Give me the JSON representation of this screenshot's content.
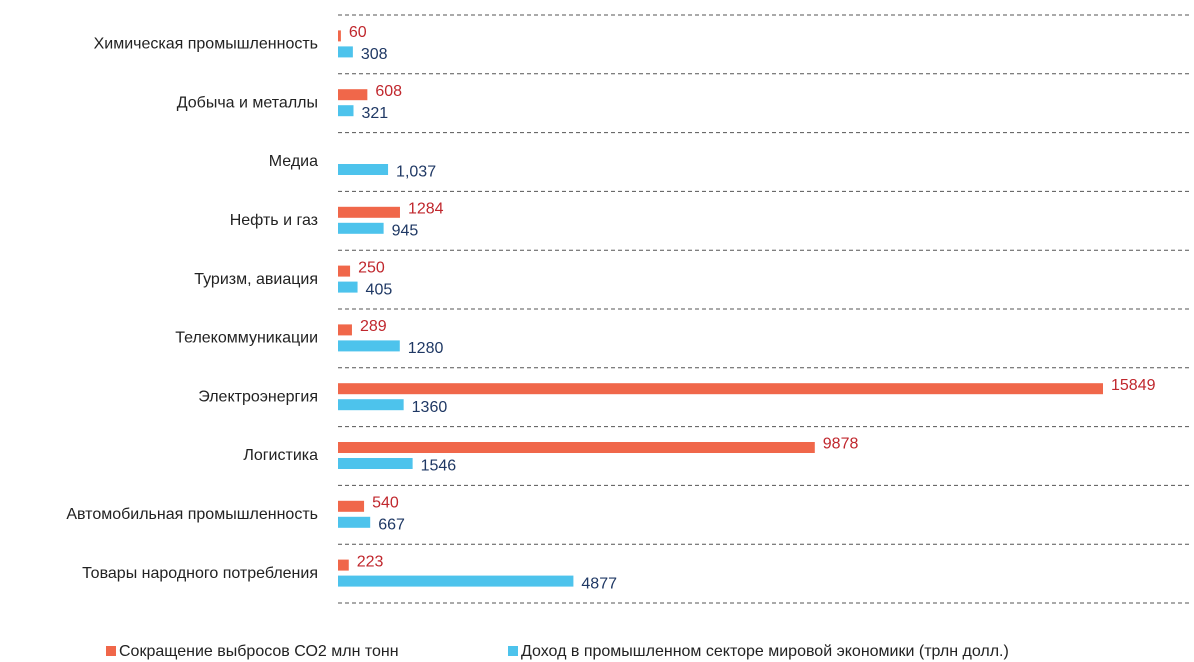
{
  "chart_data": {
    "type": "hbar",
    "categories": [
      "Химическая промышленность",
      "Добыча и металлы",
      "Медиа",
      "Нефть и газ",
      "Туризм, авиация",
      "Телекоммуникации",
      "Электроэнергия",
      "Логистика",
      "Автомобильная промышленность",
      "Товары народного потребления"
    ],
    "series": [
      {
        "name": "Сокращение выбросов СО2 млн тонн",
        "color": "#f0674a",
        "values": [
          60,
          608,
          null,
          1284,
          250,
          289,
          15849,
          9878,
          540,
          223
        ]
      },
      {
        "name": "Доход в промышленном секторе мировой экономики (трлн долл.)",
        "color": "#4dc3ec",
        "values": [
          308,
          321,
          1037,
          945,
          405,
          1280,
          1360,
          1546,
          667,
          4877
        ],
        "value_labels": [
          "308",
          "321",
          "1,037",
          "945",
          "405",
          "1280",
          "1360",
          "1546",
          "667",
          "4877"
        ]
      }
    ]
  }
}
